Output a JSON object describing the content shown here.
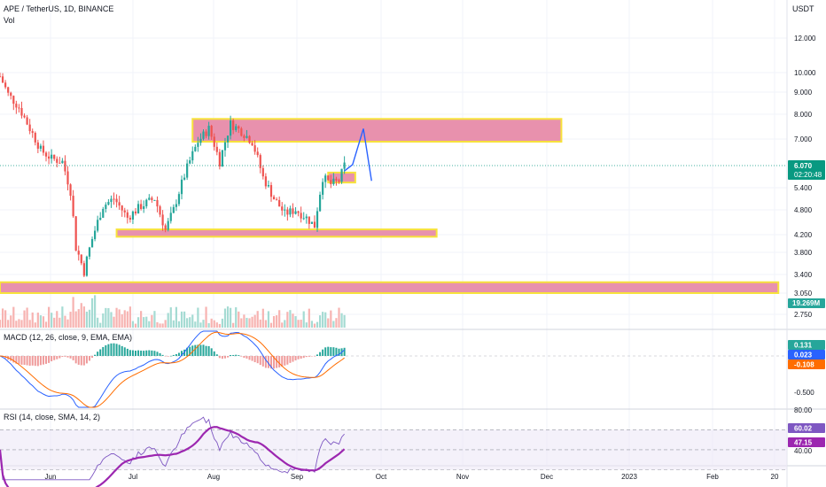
{
  "header": {
    "symbol_line": "APE / TetherUS, 1D, BINANCE",
    "vol_label": "Vol",
    "currency": "USDT",
    "macd_label": "MACD (12, 26, close, 9, EMA, EMA)",
    "rsi_label": "RSI (14, close, SMA, 14, 2)"
  },
  "price_axis": {
    "ticks": [
      "12.000",
      "10.000",
      "9.000",
      "8.000",
      "7.000",
      "6.070",
      "5.400",
      "4.800",
      "4.200",
      "3.800",
      "3.400",
      "3.050",
      "2.750"
    ],
    "last_price": "6.070",
    "countdown": "02:20:48",
    "volume_badge": "19.269M"
  },
  "macd_axis": {
    "values": [
      "0.131",
      "0.023",
      "-0.108"
    ],
    "ticks": [
      "-0.500"
    ]
  },
  "rsi_axis": {
    "ticks": [
      "80.00",
      "40.00"
    ],
    "values": [
      "60.02",
      "47.15"
    ]
  },
  "time_axis": [
    "Jun",
    "Jul",
    "Aug",
    "Sep",
    "Oct",
    "Nov",
    "Dec",
    "2023",
    "Feb",
    "20"
  ],
  "colors": {
    "up": "#26a69a",
    "down": "#ef5350",
    "zone_fill": "#e891ad",
    "zone_border": "#f7e23b",
    "projection": "#2962ff",
    "macd_line": "#2962ff",
    "signal_line": "#ff6d00",
    "rsi_line": "#7e57c2",
    "rsi_ma": "#9c27b0",
    "last_price_badge": "#089981",
    "rsi_value_1": "#7e57c2",
    "rsi_value_2": "#9c27b0",
    "macd_value_1": "#26a69a",
    "macd_value_2": "#2962ff",
    "macd_value_3": "#ff6d00"
  },
  "chart_data": {
    "type": "candlestick",
    "title": "APE / TetherUS, 1D, BINANCE",
    "x_axis": "date",
    "x_ticks": [
      "Jun",
      "Jul",
      "Aug",
      "Sep",
      "Oct",
      "Nov",
      "Dec",
      "2023",
      "Feb",
      "20"
    ],
    "y_scale": "log",
    "y_ticks": [
      2.75,
      3.05,
      3.4,
      3.8,
      4.2,
      4.8,
      5.4,
      7.0,
      8.0,
      9.0,
      10.0,
      12.0
    ],
    "last_price": 6.07,
    "price_path": [
      [
        "May 17",
        9.8
      ],
      [
        "May 20",
        8.9
      ],
      [
        "May 24",
        8.3
      ],
      [
        "May 28",
        7.4
      ],
      [
        "Jun 1",
        6.6
      ],
      [
        "Jun 5",
        6.3
      ],
      [
        "Jun 9",
        6.2
      ],
      [
        "Jun 12",
        5.3
      ],
      [
        "Jun 14",
        3.9
      ],
      [
        "Jun 17",
        3.45
      ],
      [
        "Jun 20",
        4.1
      ],
      [
        "Jun 24",
        4.9
      ],
      [
        "Jun 28",
        5.1
      ],
      [
        "Jul 3",
        4.6
      ],
      [
        "Jul 8",
        4.9
      ],
      [
        "Jul 13",
        5.1
      ],
      [
        "Jul 17",
        4.3
      ],
      [
        "Jul 20",
        4.8
      ],
      [
        "Jul 25",
        6.0
      ],
      [
        "Jul 29",
        6.9
      ],
      [
        "Aug 2",
        7.4
      ],
      [
        "Aug 6",
        6.2
      ],
      [
        "Aug 10",
        7.6
      ],
      [
        "Aug 14",
        7.3
      ],
      [
        "Aug 18",
        6.9
      ],
      [
        "Aug 22",
        5.7
      ],
      [
        "Aug 26",
        5.1
      ],
      [
        "Aug 30",
        4.7
      ],
      [
        "Sep 3",
        4.8
      ],
      [
        "Sep 7",
        4.6
      ],
      [
        "Sep 10",
        4.4
      ],
      [
        "Sep 13",
        5.7
      ],
      [
        "Sep 16",
        5.5
      ],
      [
        "Sep 19",
        5.6
      ],
      [
        "Sep 21",
        6.07
      ]
    ],
    "zones": [
      {
        "price_low": 6.9,
        "price_high": 7.8,
        "from": "Jul 27",
        "to": "Dec 10"
      },
      {
        "price_low": 5.55,
        "price_high": 5.85,
        "from": "Sep 15",
        "to": "Sep 25"
      },
      {
        "price_low": 4.15,
        "price_high": 4.32,
        "from": "Jun 29",
        "to": "Oct 25"
      },
      {
        "price_low": 3.05,
        "price_high": 3.25,
        "from": "May 17",
        "to": "Feb 28"
      }
    ],
    "projection": [
      [
        "Sep 21",
        5.9
      ],
      [
        "Sep 24",
        6.1
      ],
      [
        "Sep 28",
        7.4
      ],
      [
        "Oct 1",
        5.6
      ]
    ],
    "indicators": {
      "volume_last": "19.269M",
      "macd": {
        "macd": 0.023,
        "signal": -0.108,
        "histogram": 0.131
      },
      "rsi": {
        "rsi": 60.02,
        "ma": 47.15,
        "bands": [
          70,
          50,
          30
        ]
      }
    }
  }
}
